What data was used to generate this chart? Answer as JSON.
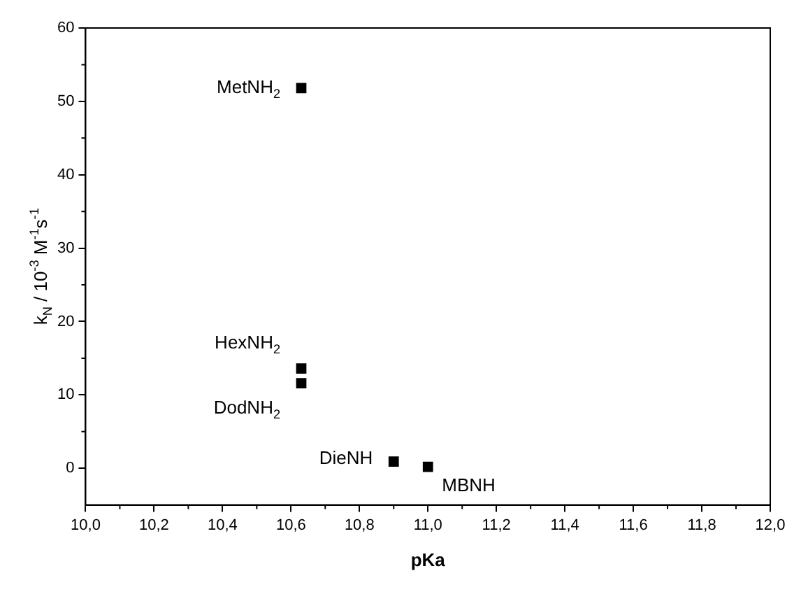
{
  "chart_data": {
    "type": "scatter",
    "xlabel": "pKa",
    "ylabel": "k$_{N}$ / 10$^{-3}$ M$^{-1}$s$^{-1}$",
    "x": [
      10.63,
      10.63,
      10.63,
      10.9,
      11.0
    ],
    "series": [
      {
        "color": "#000000",
        "values": [
          51.8,
          13.6,
          11.6,
          0.9,
          0.2
        ]
      }
    ],
    "xlim": [
      10.0,
      12.0
    ],
    "xticks": [
      {
        "value": 10.0,
        "label": "10,0"
      },
      {
        "value": 10.2,
        "label": "10,2"
      },
      {
        "value": 10.4,
        "label": "10,4"
      },
      {
        "value": 10.6,
        "label": "10,6"
      },
      {
        "value": 10.8,
        "label": "10,8"
      },
      {
        "value": 11.0,
        "label": "11,0"
      },
      {
        "value": 11.2,
        "label": "11,2"
      },
      {
        "value": 11.4,
        "label": "11,4"
      },
      {
        "value": 11.6,
        "label": "11,6"
      },
      {
        "value": 11.8,
        "label": "11,8"
      },
      {
        "value": 12.0,
        "label": "12,0"
      }
    ],
    "ylim": [
      -5,
      60
    ],
    "yticks": [
      0,
      10,
      20,
      30,
      40,
      50,
      60
    ],
    "marker": "square",
    "grid": false,
    "legend": false,
    "annotations": [
      {
        "text": "MetNH$_{2}$",
        "x": 10.63,
        "y": 51.8
      },
      {
        "text": "HexNH$_{2}$",
        "x": 10.63,
        "y": 13.6
      },
      {
        "text": "DodNH$_{2}$",
        "x": 10.63,
        "y": 11.6
      },
      {
        "text": "DieNH",
        "x": 10.9,
        "y": 0.9
      },
      {
        "text": "MBNH",
        "x": 11.0,
        "y": 0.2
      }
    ]
  }
}
